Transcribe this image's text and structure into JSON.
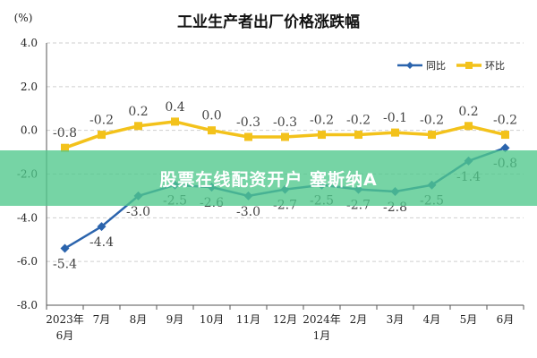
{
  "chart_data": {
    "type": "line",
    "title": "工业生产者出厂价格涨跌幅",
    "yunit": "(%)",
    "categories": [
      [
        "2023年",
        "6月"
      ],
      [
        "7月"
      ],
      [
        "8月"
      ],
      [
        "9月"
      ],
      [
        "10月"
      ],
      [
        "11月"
      ],
      [
        "12月"
      ],
      [
        "2024年",
        "1月"
      ],
      [
        "2月"
      ],
      [
        "3月"
      ],
      [
        "4月"
      ],
      [
        "5月"
      ],
      [
        "6月"
      ]
    ],
    "ylim": [
      -8.0,
      4.0
    ],
    "yticks": [
      "4.0",
      "2.0",
      "0.0",
      "-2.0",
      "-4.0",
      "-6.0",
      "-8.0"
    ],
    "ytick_values": [
      4,
      2,
      0,
      -2,
      -4,
      -6,
      -8
    ],
    "legend_position": "top-right",
    "series": [
      {
        "name": "同比",
        "color": "#2b64ad",
        "values": [
          -5.4,
          -4.4,
          -3.0,
          -2.5,
          -2.6,
          -3.0,
          -2.7,
          -2.5,
          -2.7,
          -2.8,
          -2.5,
          -1.4,
          -0.8
        ],
        "labels": [
          "-5.4",
          "-4.4",
          "-3.0",
          "-2.5",
          "-2.6",
          "-3.0",
          "-2.7",
          "-2.5",
          "-2.7",
          "-2.8",
          "-2.5",
          "-1.4",
          "-0.8"
        ]
      },
      {
        "name": "环比",
        "color": "#f3c21b",
        "values": [
          -0.8,
          -0.2,
          0.2,
          0.4,
          0.0,
          -0.3,
          -0.3,
          -0.2,
          -0.2,
          -0.1,
          -0.2,
          0.2,
          -0.2
        ],
        "labels": [
          "-0.8",
          "-0.2",
          "0.2",
          "0.4",
          "0.0",
          "-0.3",
          "-0.3",
          "-0.2",
          "-0.2",
          "-0.1",
          "-0.2",
          "0.2",
          "-0.2"
        ]
      }
    ]
  },
  "watermark": "股票在线配资开户 塞斯纳A"
}
